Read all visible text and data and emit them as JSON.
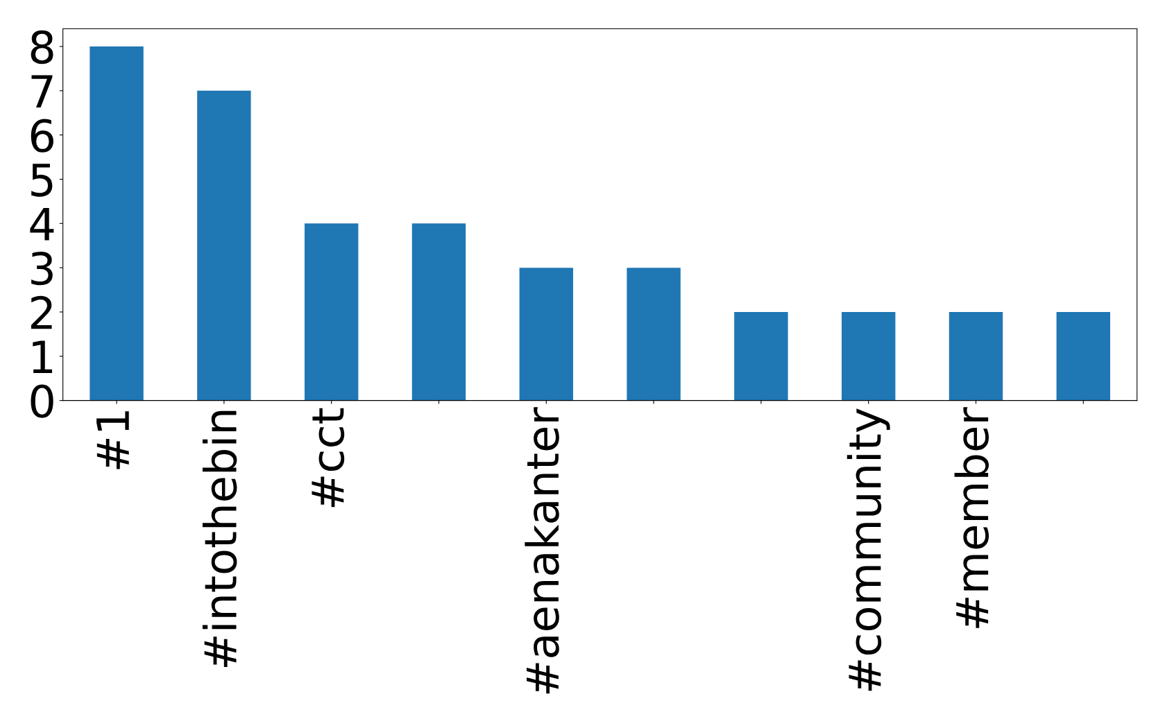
{
  "chart_data": {
    "type": "bar",
    "categories": [
      "#1",
      "#intothebin",
      "#cct",
      null,
      "#aenakanter",
      null,
      null,
      "#community",
      "#member",
      null
    ],
    "values": [
      8,
      7,
      4,
      4,
      3,
      3,
      2,
      2,
      2,
      2
    ],
    "color": "#1f77b4",
    "ylim": [
      0,
      8.4
    ],
    "yticks": [
      0,
      1,
      2,
      3,
      4,
      5,
      6,
      7,
      8
    ],
    "grid": false,
    "legend": false
  }
}
